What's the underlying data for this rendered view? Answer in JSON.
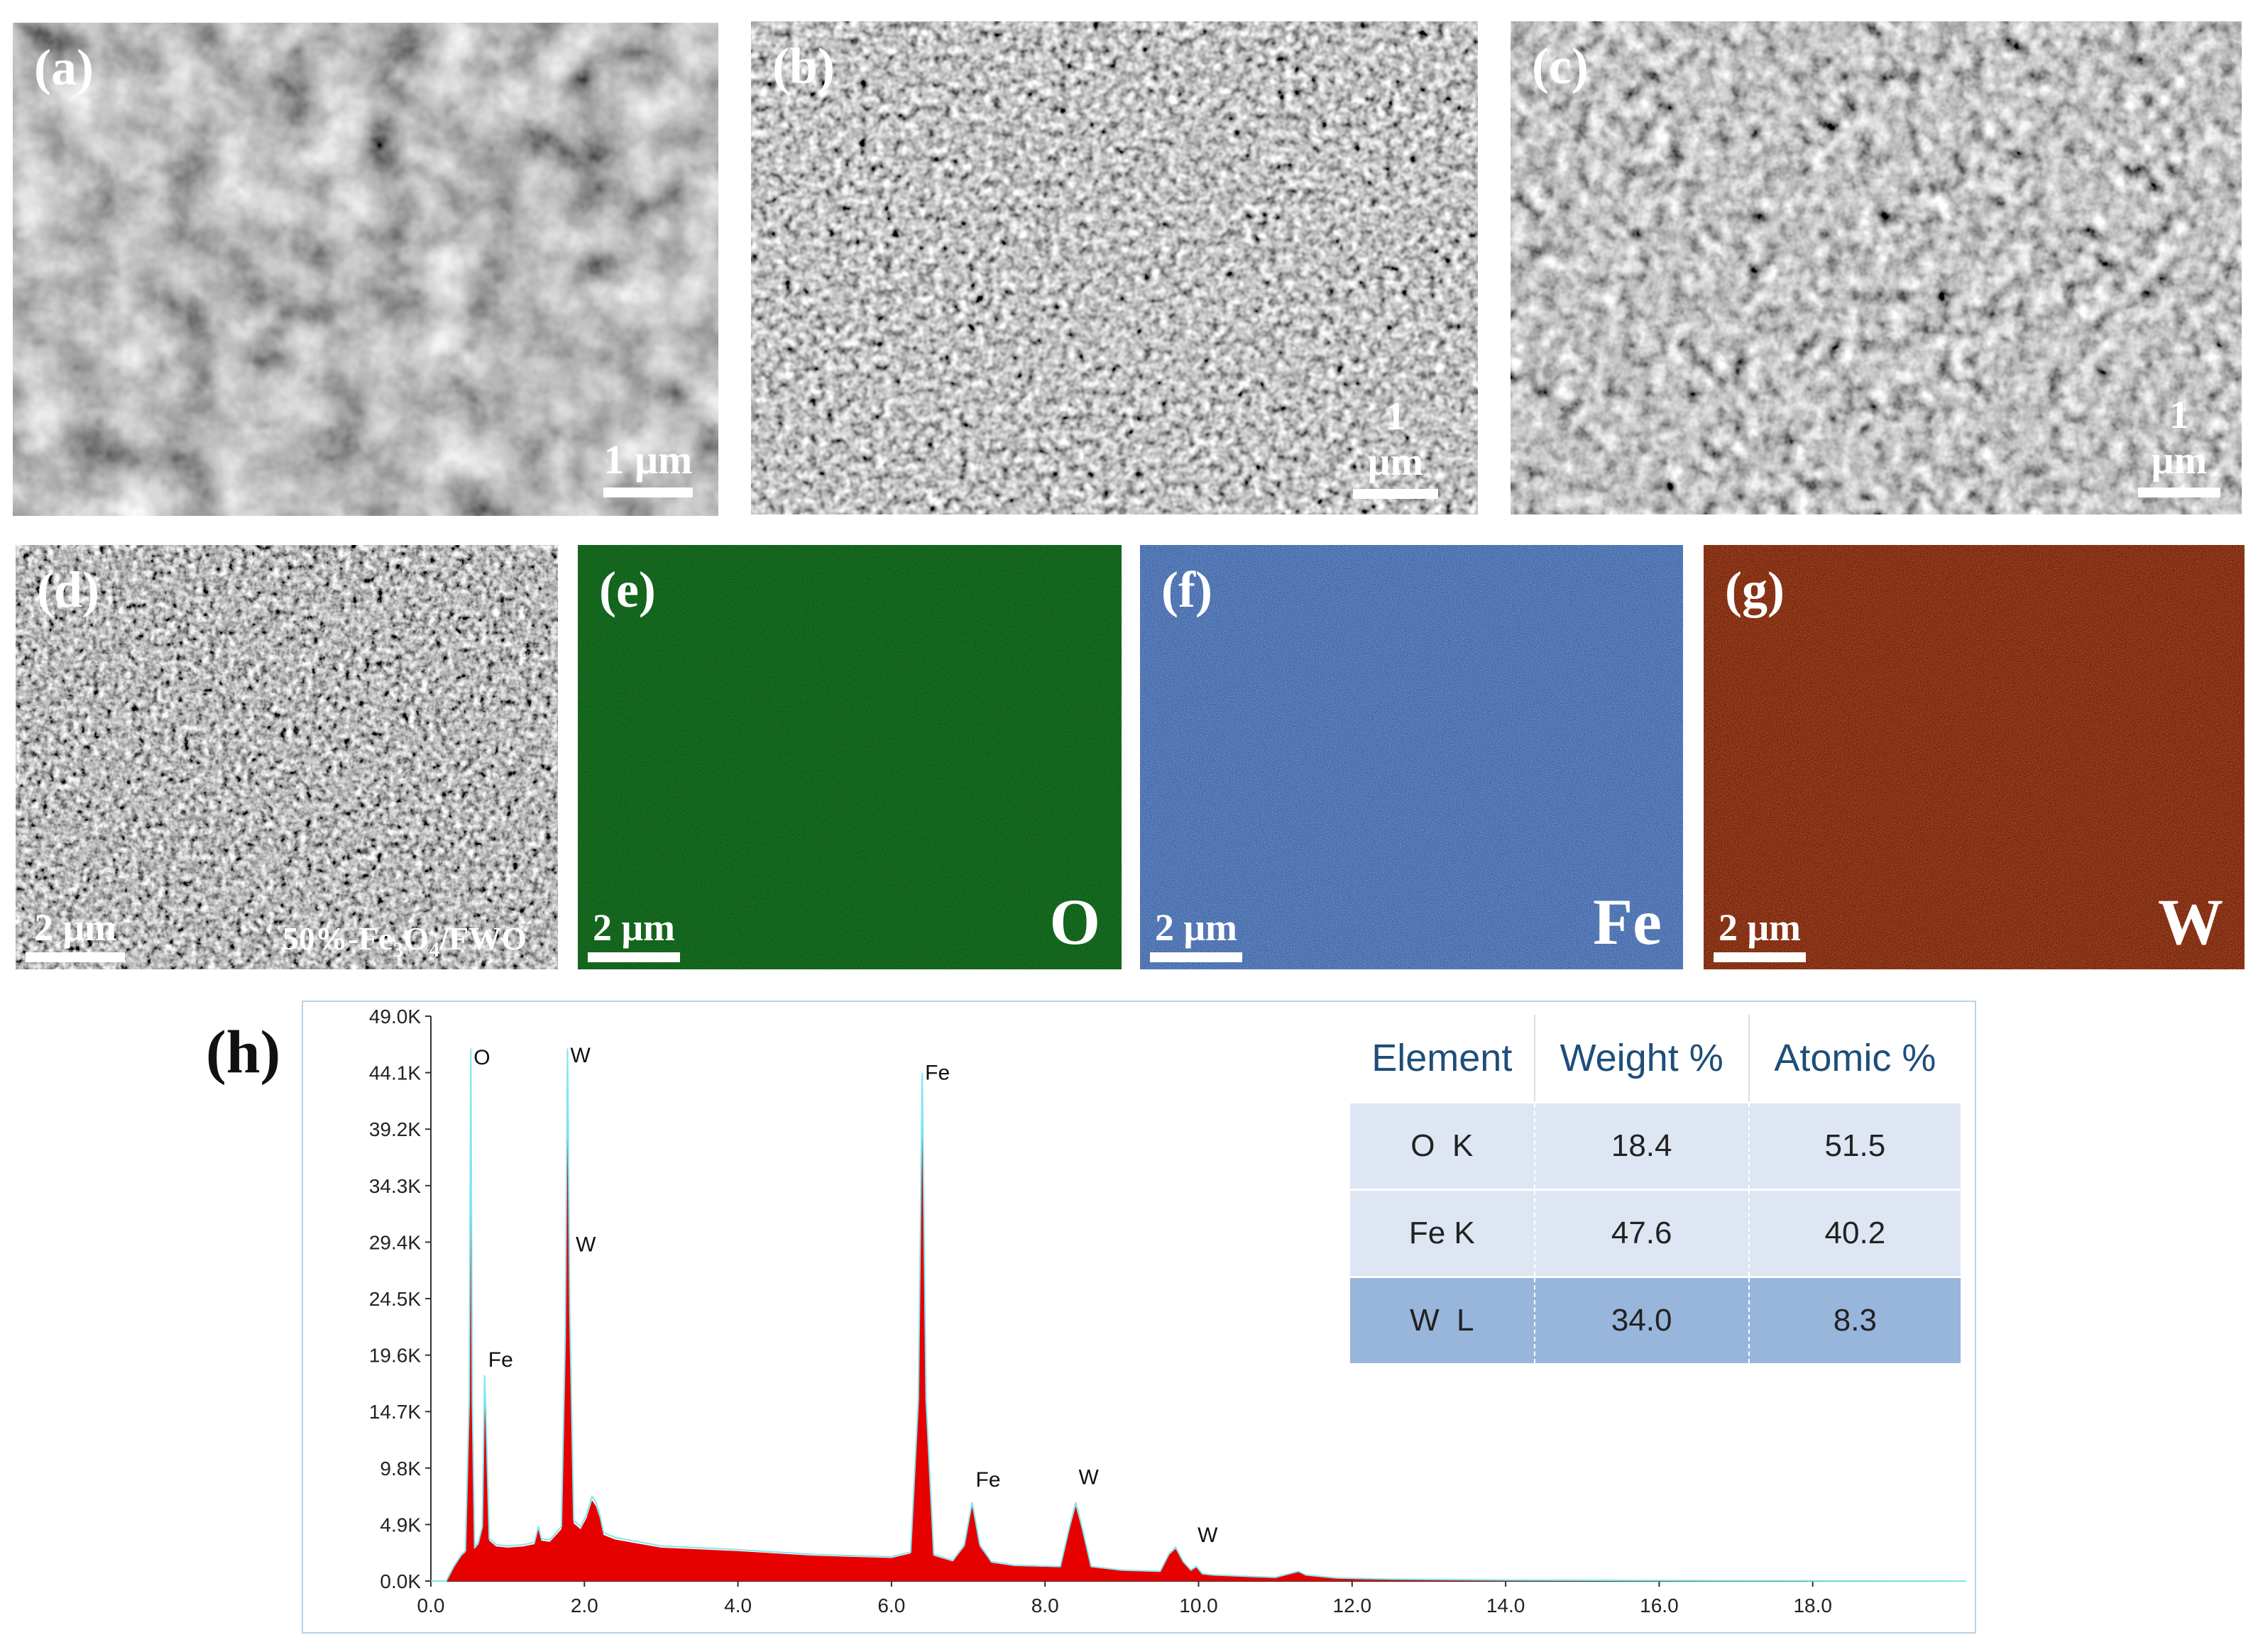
{
  "panels": {
    "a": {
      "label": "(a)",
      "scale": "1 μm"
    },
    "b": {
      "label": "(b)",
      "scale": "1 μm"
    },
    "c": {
      "label": "(c)",
      "scale": "1 μm"
    },
    "d": {
      "label": "(d)",
      "scale": "2 μm",
      "sample_prefix": "50%-Fe",
      "sample_sub1": "3",
      "sample_mid": "O",
      "sample_sub2": "4",
      "sample_suffix": "/FWO"
    },
    "e": {
      "label": "(e)",
      "scale": "2 μm",
      "element": "O",
      "color": "#0f5a16"
    },
    "f": {
      "label": "(f)",
      "scale": "2 μm",
      "element": "Fe",
      "color": "#3d64a6"
    },
    "g": {
      "label": "(g)",
      "scale": "2 μm",
      "element": "W",
      "color": "#b23210"
    }
  },
  "eds": {
    "label": "(h)",
    "table": {
      "headers": [
        "Element",
        "Weight %",
        "Atomic %"
      ],
      "rows": [
        [
          "O  K",
          "18.4",
          "51.5"
        ],
        [
          "Fe K",
          "47.6",
          "40.2"
        ],
        [
          "W  L",
          "34.0",
          "8.3"
        ]
      ]
    }
  },
  "chart_data": {
    "type": "area",
    "title": "",
    "xlabel": "",
    "ylabel": "",
    "xlim": [
      0,
      20
    ],
    "ylim": [
      0,
      49000
    ],
    "xticks": [
      "0.0",
      "2.0",
      "4.0",
      "6.0",
      "8.0",
      "10.0",
      "12.0",
      "14.0",
      "16.0",
      "18.0"
    ],
    "yticks": [
      "0.0K",
      "4.9K",
      "9.8K",
      "14.7K",
      "19.6K",
      "24.5K",
      "29.4K",
      "34.3K",
      "39.2K",
      "44.1K",
      "49.0K"
    ],
    "peak_labels": [
      {
        "text": "O",
        "x": 0.52,
        "y": 44800
      },
      {
        "text": "Fe",
        "x": 0.71,
        "y": 18600
      },
      {
        "text": "W",
        "x": 1.78,
        "y": 45000
      },
      {
        "text": "W",
        "x": 1.85,
        "y": 28600
      },
      {
        "text": "Fe",
        "x": 6.4,
        "y": 43500
      },
      {
        "text": "Fe",
        "x": 7.06,
        "y": 8200
      },
      {
        "text": "W",
        "x": 8.4,
        "y": 8400
      },
      {
        "text": "W",
        "x": 9.95,
        "y": 3400
      }
    ],
    "spectrum": {
      "x": [
        0.0,
        0.2,
        0.3,
        0.4,
        0.45,
        0.5,
        0.52,
        0.54,
        0.57,
        0.62,
        0.67,
        0.7,
        0.72,
        0.76,
        0.85,
        1.0,
        1.2,
        1.35,
        1.4,
        1.44,
        1.55,
        1.7,
        1.75,
        1.78,
        1.81,
        1.86,
        1.95,
        2.03,
        2.1,
        2.15,
        2.2,
        2.25,
        2.4,
        3.0,
        4.0,
        5.0,
        6.0,
        6.25,
        6.35,
        6.4,
        6.45,
        6.55,
        6.8,
        6.95,
        7.05,
        7.15,
        7.3,
        7.6,
        8.2,
        8.32,
        8.4,
        8.48,
        8.6,
        9.0,
        9.5,
        9.62,
        9.7,
        9.8,
        9.9,
        9.97,
        10.05,
        10.2,
        11.0,
        11.3,
        11.4,
        11.8,
        12.5,
        14.0,
        16.0,
        18.0,
        20.0
      ],
      "y": [
        0,
        0,
        1200,
        2200,
        2500,
        15000,
        44000,
        15000,
        2800,
        3200,
        4500,
        17000,
        13000,
        3500,
        3000,
        2900,
        3000,
        3200,
        4500,
        3500,
        3400,
        4500,
        20000,
        44000,
        22000,
        5000,
        4500,
        5500,
        7000,
        6500,
        5500,
        4000,
        3600,
        2900,
        2600,
        2200,
        2000,
        2400,
        15000,
        42000,
        15000,
        2200,
        1700,
        3000,
        6500,
        3000,
        1600,
        1300,
        1200,
        4500,
        6500,
        4500,
        1200,
        900,
        800,
        2300,
        2800,
        1600,
        900,
        1200,
        600,
        500,
        300,
        800,
        500,
        250,
        150,
        80,
        40,
        20,
        0
      ]
    },
    "fill_color": "#e60000",
    "outline_color": "#7fe6f0"
  }
}
